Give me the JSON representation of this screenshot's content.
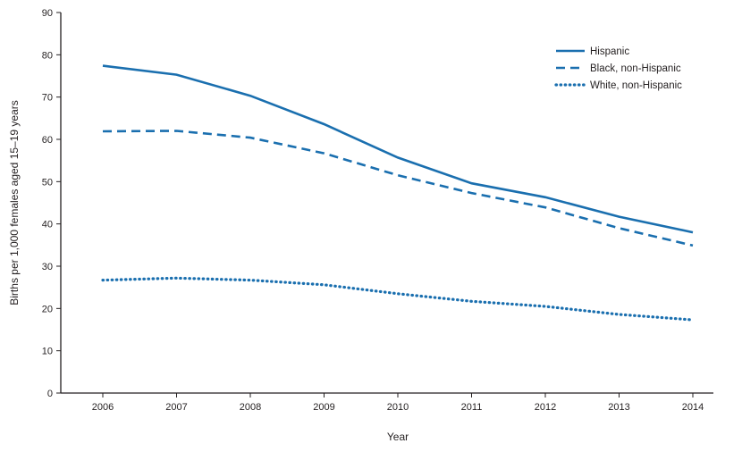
{
  "chart_data": {
    "type": "line",
    "x": [
      2006,
      2007,
      2008,
      2009,
      2010,
      2011,
      2012,
      2013,
      2014
    ],
    "series": [
      {
        "name": "Hispanic",
        "dash": "solid",
        "values": [
          77.4,
          75.3,
          70.3,
          63.6,
          55.7,
          49.6,
          46.3,
          41.7,
          38.0
        ]
      },
      {
        "name": "Black, non-Hispanic",
        "dash": "dashed",
        "values": [
          61.9,
          62.0,
          60.4,
          56.7,
          51.5,
          47.3,
          43.9,
          39.0,
          34.9
        ]
      },
      {
        "name": "White, non-Hispanic",
        "dash": "dotted",
        "values": [
          26.7,
          27.2,
          26.7,
          25.6,
          23.5,
          21.7,
          20.5,
          18.6,
          17.3
        ]
      }
    ],
    "title": "",
    "xlabel": "Year",
    "ylabel": "Births per 1,000 females aged 15–19 years",
    "ylim": [
      0,
      90
    ],
    "yticks": [
      0,
      10,
      20,
      30,
      40,
      50,
      60,
      70,
      80,
      90
    ],
    "line_color": "#1A6FAF",
    "legend_position": "top-right",
    "grid": false
  }
}
